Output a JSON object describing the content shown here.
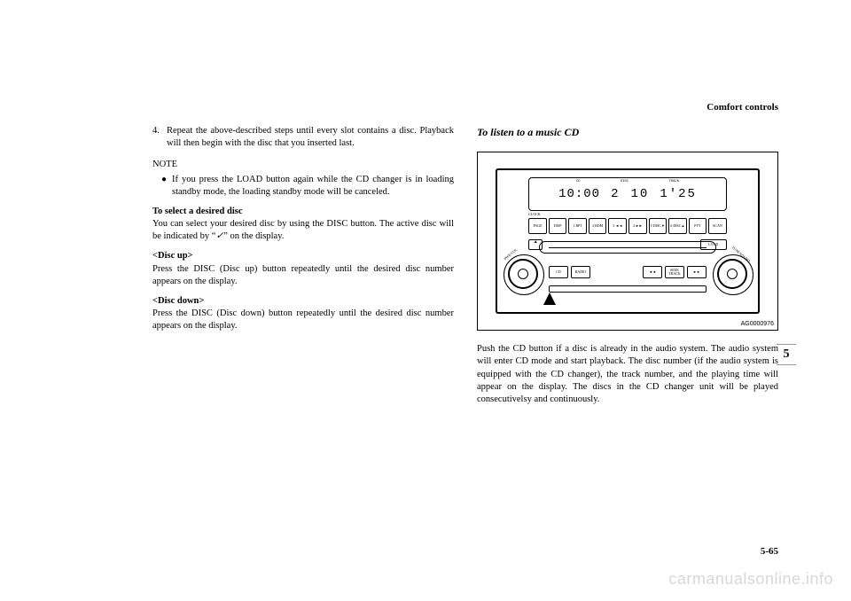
{
  "header": "Comfort controls",
  "left": {
    "step4_num": "4.",
    "step4_text": "Repeat the above-described steps until every slot contains a disc. Playback will then begin with the disc that you inserted last.",
    "note_label": "NOTE",
    "note_bullet": "If you press the LOAD button again while the CD changer is in loading standby mode, the loading standby mode will be canceled.",
    "select_head": "To select a desired disc",
    "select_p1a": "You can select your desired disc by using the DISC button. The active disc will be indicated by “",
    "select_p1b": "” on the display.",
    "discup_head": "<Disc up>",
    "discup_text": "Press the DISC (Disc up) button repeatedly until the desired disc number appears on the display.",
    "discdown_head": "<Disc down>",
    "discdown_text": "Press the DISC (Disc down) button repeatedly until the desired disc number appears on the display."
  },
  "right": {
    "title": "To listen to a music CD",
    "para": "Push the CD button if a disc is already in the audio system. The audio system will enter CD mode and start playback. The disc number (if the audio system is equipped with the CD changer), the track number, and the playing time will appear on the display. The discs in the CD changer unit will be played consecutivelsy and continuously."
  },
  "diagram": {
    "time_left": "10:00",
    "disc": "2",
    "track": "10",
    "playtime": "1'25",
    "labels": {
      "cd": "CD",
      "disc": "DISC",
      "track": "TRACK"
    },
    "clock": "CLOCK",
    "btns": [
      "PAGE",
      "DISP",
      "1 RPT",
      "2 RDM",
      "3 ◄◄",
      "4 ►►",
      "5 DISC▼",
      "6 DISC▲",
      "PTY",
      "SCAN"
    ],
    "load": "LOAD",
    "cd_btn": "CD",
    "radio_btn": "RADIO",
    "seek_label": "SEEK TRACK",
    "knob_left": "PWR/VOL",
    "knob_right": "TUNE/SOUND",
    "img_id": "AG0000976"
  },
  "side_tab": "5",
  "page_num": "5-65",
  "watermark": "carmanualsonline.info"
}
